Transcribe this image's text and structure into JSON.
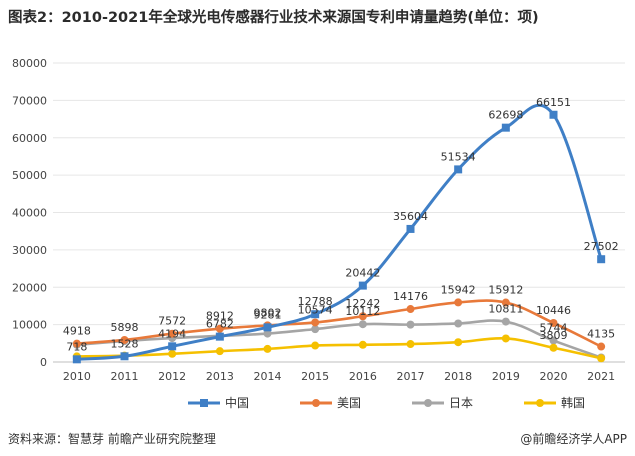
{
  "title": "图表2：2010-2021年全球光电传感器行业技术来源国专利申请量趋势(单位：项)",
  "footer": {
    "source": "资料来源：智慧芽 前瞻产业研究院整理",
    "brand": "@前瞻经济学人APP"
  },
  "chart_data": {
    "type": "line",
    "title": "2010-2021年全球光电传感器行业技术来源国专利申请量趋势(单位：项)",
    "categories": [
      "2010",
      "2011",
      "2012",
      "2013",
      "2014",
      "2015",
      "2016",
      "2017",
      "2018",
      "2019",
      "2020",
      "2021"
    ],
    "ylim": [
      0,
      80000
    ],
    "yticks": [
      0,
      10000,
      20000,
      30000,
      40000,
      50000,
      60000,
      70000,
      80000
    ],
    "series": [
      {
        "name": "中国",
        "color": "#3f7fc6",
        "marker": "square",
        "values": [
          718,
          1528,
          4194,
          6782,
          9281,
          12788,
          20442,
          35604,
          51534,
          62698,
          66151,
          27502
        ],
        "labels": [
          "718",
          "1528",
          "4194",
          "6782",
          "9281",
          "12788",
          "20442",
          "35604",
          "51534",
          "62698",
          "66151",
          "27502"
        ]
      },
      {
        "name": "美国",
        "color": "#e8793a",
        "marker": "circle",
        "values": [
          4918,
          5898,
          7572,
          8912,
          9802,
          10574,
          12242,
          14176,
          15942,
          15912,
          10446,
          4135
        ],
        "labels": [
          "4918",
          "5898",
          "7572",
          "8912",
          "9802",
          "10574",
          "12242",
          "14176",
          "15942",
          "15912",
          "10446",
          "4135"
        ]
      },
      {
        "name": "日本",
        "color": "#a5a5a5",
        "marker": "circle",
        "values": [
          4600,
          5600,
          6400,
          7000,
          7600,
          8800,
          10112,
          10000,
          10300,
          10811,
          5744,
          1200
        ],
        "labels": [
          "",
          "",
          "",
          "",
          "",
          "",
          "10112",
          "",
          "",
          "10811",
          "5744",
          ""
        ]
      },
      {
        "name": "韩国",
        "color": "#f5c000",
        "marker": "circle",
        "values": [
          1500,
          1700,
          2200,
          2900,
          3500,
          4400,
          4600,
          4800,
          5300,
          6300,
          3809,
          1000
        ],
        "labels": [
          "",
          "",
          "",
          "",
          "",
          "",
          "",
          "",
          "",
          "",
          "3809",
          ""
        ]
      }
    ],
    "legend_position": "bottom"
  }
}
